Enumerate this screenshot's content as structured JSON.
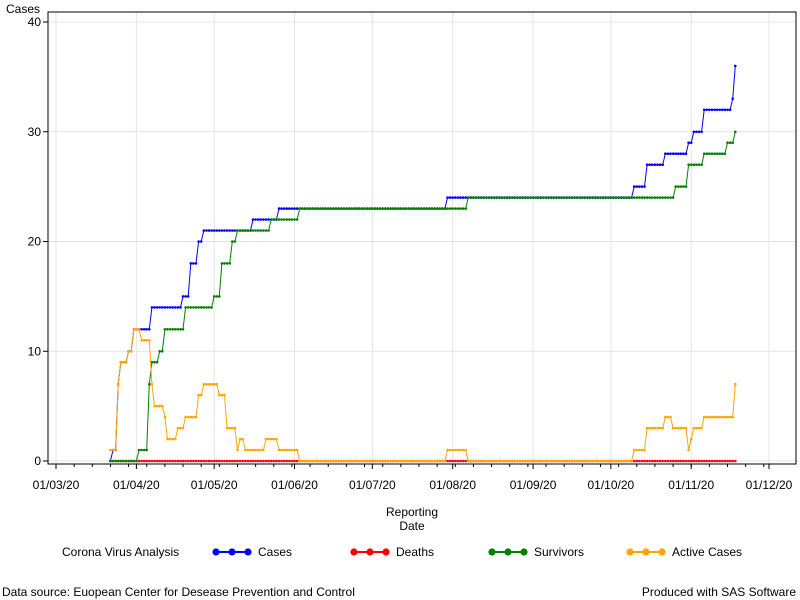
{
  "footnote_left": "Data source: Euopean Center for Desease Prevention and Control",
  "footnote_right": "Produced with SAS Software",
  "chart_data": {
    "type": "line",
    "title": "",
    "ylabel": "Cases",
    "xlabel_lines": [
      "Reporting",
      "Date"
    ],
    "ylim": [
      0,
      40
    ],
    "yticks": [
      0,
      10,
      20,
      30,
      40
    ],
    "xlim": [
      "2020-02-28",
      "2020-11-30"
    ],
    "xticks": [
      {
        "date": "2020-03-01",
        "label": "01/03/20"
      },
      {
        "date": "2020-04-01",
        "label": "01/04/20"
      },
      {
        "date": "2020-05-01",
        "label": "01/05/20"
      },
      {
        "date": "2020-06-01",
        "label": "01/06/20"
      },
      {
        "date": "2020-07-01",
        "label": "01/07/20"
      },
      {
        "date": "2020-08-01",
        "label": "01/08/20"
      },
      {
        "date": "2020-09-01",
        "label": "01/09/20"
      },
      {
        "date": "2020-10-01",
        "label": "01/10/20"
      },
      {
        "date": "2020-11-01",
        "label": "01/11/20"
      },
      {
        "date": "2020-12-01",
        "label": "01/12/20"
      }
    ],
    "grid": true,
    "legend_title": "Corona Virus Analysis",
    "legend_position": "bottom",
    "series": [
      {
        "name": "Cases",
        "color": "#0000ff",
        "steps": [
          [
            "2020-03-22",
            0
          ],
          [
            "2020-03-23",
            1
          ],
          [
            "2020-03-25",
            7
          ],
          [
            "2020-03-26",
            9
          ],
          [
            "2020-03-29",
            10
          ],
          [
            "2020-03-31",
            12
          ],
          [
            "2020-04-07",
            14
          ],
          [
            "2020-04-19",
            15
          ],
          [
            "2020-04-22",
            18
          ],
          [
            "2020-04-25",
            20
          ],
          [
            "2020-04-27",
            21
          ],
          [
            "2020-05-16",
            22
          ],
          [
            "2020-05-26",
            23
          ],
          [
            "2020-07-30",
            24
          ],
          [
            "2020-10-10",
            25
          ],
          [
            "2020-10-15",
            27
          ],
          [
            "2020-10-22",
            28
          ],
          [
            "2020-10-31",
            29
          ],
          [
            "2020-11-02",
            30
          ],
          [
            "2020-11-06",
            32
          ],
          [
            "2020-11-17",
            33
          ],
          [
            "2020-11-18",
            36
          ]
        ]
      },
      {
        "name": "Deaths",
        "color": "#ff0000",
        "steps": [
          [
            "2020-03-22",
            0
          ],
          [
            "2020-11-18",
            0
          ]
        ]
      },
      {
        "name": "Survivors",
        "color": "#008000",
        "steps": [
          [
            "2020-03-22",
            0
          ],
          [
            "2020-04-02",
            1
          ],
          [
            "2020-04-06",
            7
          ],
          [
            "2020-04-07",
            9
          ],
          [
            "2020-04-10",
            10
          ],
          [
            "2020-04-12",
            12
          ],
          [
            "2020-04-20",
            14
          ],
          [
            "2020-05-01",
            15
          ],
          [
            "2020-05-04",
            18
          ],
          [
            "2020-05-08",
            20
          ],
          [
            "2020-05-10",
            21
          ],
          [
            "2020-05-23",
            22
          ],
          [
            "2020-06-03",
            23
          ],
          [
            "2020-08-07",
            24
          ],
          [
            "2020-10-26",
            25
          ],
          [
            "2020-10-31",
            27
          ],
          [
            "2020-11-06",
            28
          ],
          [
            "2020-11-15",
            29
          ],
          [
            "2020-11-18",
            30
          ]
        ]
      },
      {
        "name": "Active Cases",
        "color": "#ffa500",
        "steps": [
          [
            "2020-03-22",
            1
          ],
          [
            "2020-03-25",
            7
          ],
          [
            "2020-03-26",
            9
          ],
          [
            "2020-03-29",
            10
          ],
          [
            "2020-03-31",
            12
          ],
          [
            "2020-04-03",
            11
          ],
          [
            "2020-04-07",
            7
          ],
          [
            "2020-04-08",
            5
          ],
          [
            "2020-04-12",
            4
          ],
          [
            "2020-04-13",
            2
          ],
          [
            "2020-04-17",
            3
          ],
          [
            "2020-04-20",
            4
          ],
          [
            "2020-04-25",
            6
          ],
          [
            "2020-04-27",
            7
          ],
          [
            "2020-05-03",
            6
          ],
          [
            "2020-05-06",
            3
          ],
          [
            "2020-05-10",
            1
          ],
          [
            "2020-05-11",
            2
          ],
          [
            "2020-05-13",
            1
          ],
          [
            "2020-05-21",
            2
          ],
          [
            "2020-05-26",
            1
          ],
          [
            "2020-06-03",
            0
          ],
          [
            "2020-07-30",
            1
          ],
          [
            "2020-08-07",
            0
          ],
          [
            "2020-10-10",
            1
          ],
          [
            "2020-10-15",
            3
          ],
          [
            "2020-10-22",
            4
          ],
          [
            "2020-10-25",
            3
          ],
          [
            "2020-10-31",
            1
          ],
          [
            "2020-11-01",
            2
          ],
          [
            "2020-11-02",
            3
          ],
          [
            "2020-11-06",
            4
          ],
          [
            "2020-11-18",
            7
          ]
        ]
      }
    ]
  }
}
